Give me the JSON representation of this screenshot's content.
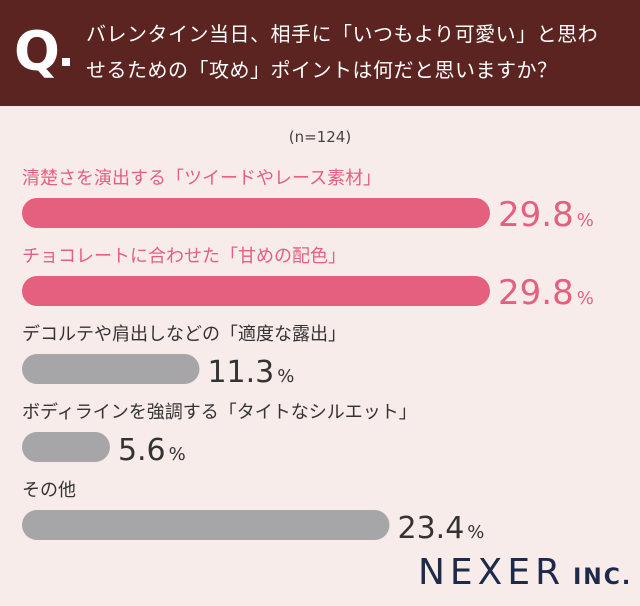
{
  "question": {
    "mark": "Q",
    "line1": "バレンタイン当日、相手に「いつもより可愛い」と思わ",
    "line2": "せるための「攻め」ポイントは何だと思いますか？"
  },
  "sample_size": "(n=124)",
  "colors": {
    "header_bg": "#5b2421",
    "highlight": "#e4607e",
    "gray": "#a6a6a8",
    "background": "#f8eceb"
  },
  "chart_data": {
    "type": "bar",
    "orientation": "horizontal",
    "unit": "%",
    "xlim": [
      0,
      29.8
    ],
    "categories": [
      "清楚さを演出する「ツイードやレース素材」",
      "チョコレートに合わせた「甘めの配色」",
      "デコルテや肩出しなどの「適度な露出」",
      "ボディラインを強調する「タイトなシルエット」",
      "その他"
    ],
    "values": [
      29.8,
      29.8,
      11.3,
      5.6,
      23.4
    ],
    "value_labels": [
      "29.8",
      "29.8",
      "11.3",
      "5.6",
      "23.4"
    ],
    "highlighted": [
      true,
      true,
      false,
      false,
      false
    ]
  },
  "logo": {
    "main": "NEXER",
    "sub": "INC."
  }
}
